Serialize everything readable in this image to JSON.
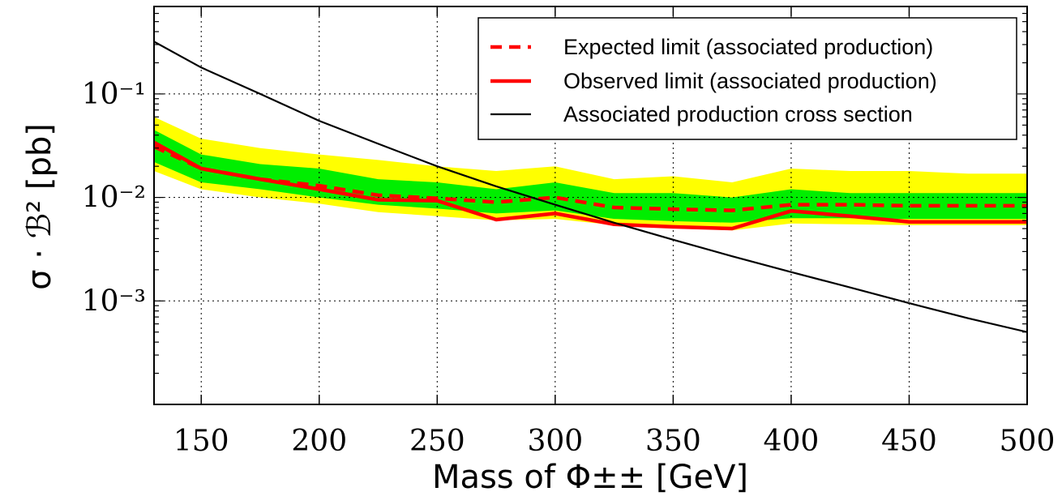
{
  "chart_data": {
    "type": "line",
    "title": "",
    "xlabel": "Mass of Φ±± [GeV]",
    "ylabel": "σ · ℬ² [pb]",
    "xlim": [
      130,
      500
    ],
    "ylim": [
      0.0001,
      0.7
    ],
    "yscale": "log",
    "grid": true,
    "legend_position": "top-right",
    "x_ticks": [
      "150",
      "200",
      "250",
      "300",
      "350",
      "400",
      "450",
      "500"
    ],
    "y_ticks": [
      {
        "value": 0.1,
        "label": "10⁻¹"
      },
      {
        "value": 0.01,
        "label": "10⁻²"
      },
      {
        "value": 0.001,
        "label": "10⁻³"
      }
    ],
    "x": [
      130,
      150,
      175,
      200,
      225,
      250,
      275,
      300,
      325,
      350,
      375,
      400,
      425,
      450,
      475,
      500
    ],
    "bands": {
      "yellow": {
        "color": "#ffff00",
        "lower": [
          0.018,
          0.012,
          0.01,
          0.0087,
          0.0072,
          0.0066,
          0.006,
          0.0062,
          0.0054,
          0.0051,
          0.0048,
          0.0056,
          0.0055,
          0.0054,
          0.0054,
          0.0054
        ],
        "upper": [
          0.06,
          0.037,
          0.03,
          0.026,
          0.023,
          0.02,
          0.018,
          0.02,
          0.015,
          0.016,
          0.014,
          0.019,
          0.018,
          0.018,
          0.017,
          0.017
        ]
      },
      "green": {
        "color": "#00ee00",
        "lower": [
          0.022,
          0.014,
          0.012,
          0.01,
          0.0085,
          0.0078,
          0.007,
          0.0075,
          0.0062,
          0.0059,
          0.0057,
          0.0063,
          0.0063,
          0.0062,
          0.0062,
          0.0062
        ],
        "upper": [
          0.045,
          0.026,
          0.021,
          0.019,
          0.015,
          0.014,
          0.012,
          0.014,
          0.011,
          0.011,
          0.01,
          0.012,
          0.011,
          0.011,
          0.011,
          0.011
        ]
      }
    },
    "series": [
      {
        "name": "Expected limit (associated production)",
        "color": "#ff0000",
        "style": "dashed",
        "values": [
          0.031,
          0.019,
          0.015,
          0.013,
          0.0105,
          0.0098,
          0.009,
          0.01,
          0.008,
          0.0077,
          0.0075,
          0.0085,
          0.0085,
          0.0083,
          0.0083,
          0.0083
        ]
      },
      {
        "name": "Observed limit (associated production)",
        "color": "#ff0000",
        "style": "solid",
        "values": [
          0.034,
          0.019,
          0.015,
          0.012,
          0.0095,
          0.0093,
          0.0061,
          0.007,
          0.0055,
          0.0052,
          0.005,
          0.0074,
          0.0066,
          0.0058,
          0.0058,
          0.0058
        ]
      },
      {
        "name": "Associated production cross section",
        "color": "#000000",
        "style": "solid",
        "x": [
          130,
          150,
          175,
          200,
          225,
          250,
          275,
          300,
          325,
          350,
          375,
          400,
          425,
          450,
          475,
          500
        ],
        "values": [
          0.32,
          0.18,
          0.1,
          0.055,
          0.033,
          0.02,
          0.0128,
          0.0085,
          0.0057,
          0.0039,
          0.0027,
          0.0019,
          0.00135,
          0.00095,
          0.00068,
          0.0005
        ]
      }
    ]
  }
}
